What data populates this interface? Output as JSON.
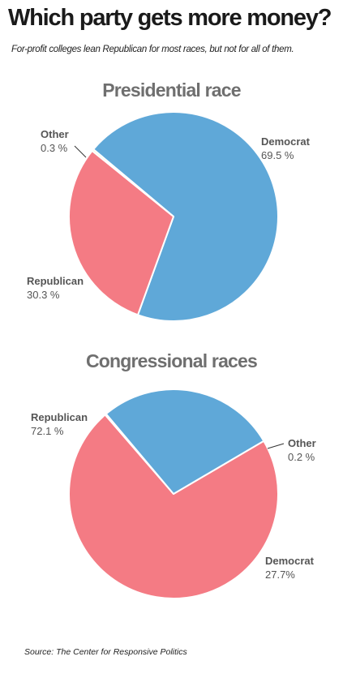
{
  "title": "Which party gets more money?",
  "subtitle": "For-profit colleges lean Republican for most races, but not for all of them.",
  "source": "Source: The Center for Responsive Politics",
  "colors": {
    "democrat": "#5fa8d8",
    "republican": "#f47b84",
    "other": "#f4ef9a"
  },
  "chart_data": [
    {
      "type": "pie",
      "title": "Presidential race",
      "slices": [
        {
          "name": "Democrat",
          "value": 69.5,
          "label": "69.5 %",
          "color": "#5fa8d8"
        },
        {
          "name": "Republican",
          "value": 30.3,
          "label": "30.3 %",
          "color": "#f47b84"
        },
        {
          "name": "Other",
          "value": 0.3,
          "label": "0.3 %",
          "color": "#f4ef9a"
        }
      ]
    },
    {
      "type": "pie",
      "title": "Congressional races",
      "slices": [
        {
          "name": "Republican",
          "value": 72.1,
          "label": "72.1 %",
          "color": "#f47b84"
        },
        {
          "name": "Other",
          "value": 0.2,
          "label": "0.2 %",
          "color": "#f4ef9a"
        },
        {
          "name": "Democrat",
          "value": 27.7,
          "label": "27.7%",
          "color": "#5fa8d8"
        }
      ]
    }
  ]
}
